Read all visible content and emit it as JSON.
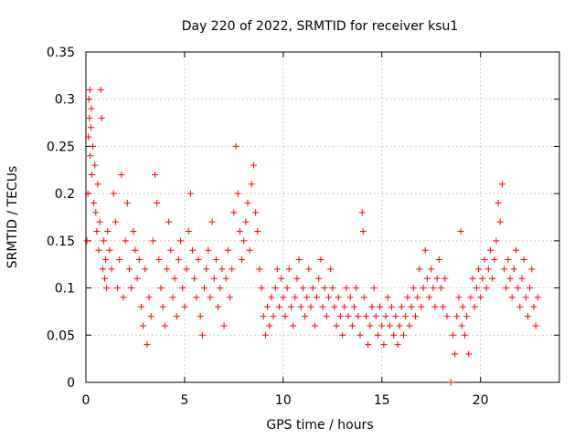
{
  "chart_data": {
    "type": "scatter",
    "title": "Day 220 of 2022, SRMTID for receiver ksu1",
    "xlabel": "GPS time / hours",
    "ylabel": "SRMTID / TECUs",
    "xlim": [
      0,
      24
    ],
    "ylim": [
      0,
      0.35
    ],
    "xticks": [
      0,
      5,
      10,
      15,
      20
    ],
    "xtick_labels": [
      "0",
      "5",
      "10",
      "15",
      "20"
    ],
    "yticks": [
      0,
      0.05,
      0.1,
      0.15,
      0.2,
      0.25,
      0.3,
      0.35
    ],
    "ytick_labels": [
      "0",
      "0.05",
      "0.1",
      "0.15",
      "0.2",
      "0.25",
      "0.3",
      "0.35"
    ],
    "grid": true,
    "marker": "plus",
    "color": "#ff0000",
    "series": [
      {
        "name": "SRMTID",
        "points": [
          [
            0.05,
            0.15
          ],
          [
            0.1,
            0.2
          ],
          [
            0.12,
            0.26
          ],
          [
            0.15,
            0.3
          ],
          [
            0.18,
            0.28
          ],
          [
            0.2,
            0.31
          ],
          [
            0.22,
            0.24
          ],
          [
            0.25,
            0.27
          ],
          [
            0.28,
            0.29
          ],
          [
            0.3,
            0.22
          ],
          [
            0.35,
            0.25
          ],
          [
            0.4,
            0.19
          ],
          [
            0.45,
            0.23
          ],
          [
            0.5,
            0.18
          ],
          [
            0.55,
            0.16
          ],
          [
            0.6,
            0.21
          ],
          [
            0.65,
            0.14
          ],
          [
            0.7,
            0.17
          ],
          [
            0.75,
            0.31
          ],
          [
            0.8,
            0.28
          ],
          [
            0.85,
            0.12
          ],
          [
            0.9,
            0.15
          ],
          [
            0.95,
            0.11
          ],
          [
            1.0,
            0.13
          ],
          [
            1.05,
            0.1
          ],
          [
            1.1,
            0.16
          ],
          [
            1.2,
            0.14
          ],
          [
            1.3,
            0.12
          ],
          [
            1.4,
            0.2
          ],
          [
            1.5,
            0.17
          ],
          [
            1.6,
            0.1
          ],
          [
            1.7,
            0.13
          ],
          [
            1.8,
            0.22
          ],
          [
            1.9,
            0.09
          ],
          [
            2.0,
            0.15
          ],
          [
            2.1,
            0.19
          ],
          [
            2.2,
            0.12
          ],
          [
            2.3,
            0.1
          ],
          [
            2.4,
            0.16
          ],
          [
            2.5,
            0.14
          ],
          [
            2.6,
            0.11
          ],
          [
            2.7,
            0.13
          ],
          [
            2.8,
            0.08
          ],
          [
            2.9,
            0.06
          ],
          [
            3.0,
            0.12
          ],
          [
            3.1,
            0.04
          ],
          [
            3.2,
            0.09
          ],
          [
            3.3,
            0.07
          ],
          [
            3.4,
            0.15
          ],
          [
            3.5,
            0.22
          ],
          [
            3.6,
            0.19
          ],
          [
            3.7,
            0.13
          ],
          [
            3.8,
            0.1
          ],
          [
            3.9,
            0.08
          ],
          [
            4.0,
            0.06
          ],
          [
            4.1,
            0.12
          ],
          [
            4.2,
            0.17
          ],
          [
            4.3,
            0.14
          ],
          [
            4.4,
            0.09
          ],
          [
            4.5,
            0.11
          ],
          [
            4.6,
            0.07
          ],
          [
            4.7,
            0.13
          ],
          [
            4.8,
            0.15
          ],
          [
            4.9,
            0.1
          ],
          [
            5.0,
            0.08
          ],
          [
            5.1,
            0.12
          ],
          [
            5.2,
            0.16
          ],
          [
            5.3,
            0.2
          ],
          [
            5.4,
            0.14
          ],
          [
            5.5,
            0.11
          ],
          [
            5.6,
            0.09
          ],
          [
            5.7,
            0.13
          ],
          [
            5.8,
            0.07
          ],
          [
            5.9,
            0.05
          ],
          [
            6.0,
            0.1
          ],
          [
            6.1,
            0.12
          ],
          [
            6.2,
            0.14
          ],
          [
            6.3,
            0.09
          ],
          [
            6.4,
            0.17
          ],
          [
            6.5,
            0.11
          ],
          [
            6.6,
            0.13
          ],
          [
            6.7,
            0.08
          ],
          [
            6.8,
            0.1
          ],
          [
            6.9,
            0.12
          ],
          [
            7.0,
            0.06
          ],
          [
            7.1,
            0.11
          ],
          [
            7.2,
            0.14
          ],
          [
            7.3,
            0.09
          ],
          [
            7.4,
            0.12
          ],
          [
            7.5,
            0.18
          ],
          [
            7.6,
            0.25
          ],
          [
            7.7,
            0.2
          ],
          [
            7.8,
            0.16
          ],
          [
            7.9,
            0.13
          ],
          [
            8.0,
            0.15
          ],
          [
            8.1,
            0.17
          ],
          [
            8.2,
            0.19
          ],
          [
            8.3,
            0.14
          ],
          [
            8.4,
            0.21
          ],
          [
            8.5,
            0.23
          ],
          [
            8.6,
            0.18
          ],
          [
            8.7,
            0.16
          ],
          [
            8.8,
            0.12
          ],
          [
            8.9,
            0.1
          ],
          [
            9.0,
            0.07
          ],
          [
            9.1,
            0.05
          ],
          [
            9.2,
            0.08
          ],
          [
            9.3,
            0.06
          ],
          [
            9.4,
            0.09
          ],
          [
            9.5,
            0.07
          ],
          [
            9.6,
            0.1
          ],
          [
            9.7,
            0.12
          ],
          [
            9.8,
            0.08
          ],
          [
            9.9,
            0.11
          ],
          [
            10.0,
            0.09
          ],
          [
            10.1,
            0.07
          ],
          [
            10.2,
            0.1
          ],
          [
            10.3,
            0.12
          ],
          [
            10.4,
            0.08
          ],
          [
            10.5,
            0.06
          ],
          [
            10.6,
            0.09
          ],
          [
            10.7,
            0.11
          ],
          [
            10.8,
            0.13
          ],
          [
            10.9,
            0.08
          ],
          [
            11.0,
            0.1
          ],
          [
            11.1,
            0.07
          ],
          [
            11.2,
            0.09
          ],
          [
            11.3,
            0.12
          ],
          [
            11.4,
            0.08
          ],
          [
            11.5,
            0.1
          ],
          [
            11.6,
            0.06
          ],
          [
            11.7,
            0.09
          ],
          [
            11.8,
            0.11
          ],
          [
            11.9,
            0.13
          ],
          [
            12.0,
            0.08
          ],
          [
            12.1,
            0.1
          ],
          [
            12.2,
            0.07
          ],
          [
            12.3,
            0.09
          ],
          [
            12.4,
            0.12
          ],
          [
            12.5,
            0.1
          ],
          [
            12.6,
            0.08
          ],
          [
            12.7,
            0.06
          ],
          [
            12.8,
            0.09
          ],
          [
            12.9,
            0.07
          ],
          [
            13.0,
            0.05
          ],
          [
            13.1,
            0.08
          ],
          [
            13.2,
            0.1
          ],
          [
            13.3,
            0.07
          ],
          [
            13.4,
            0.09
          ],
          [
            13.5,
            0.06
          ],
          [
            13.6,
            0.08
          ],
          [
            13.7,
            0.1
          ],
          [
            13.8,
            0.07
          ],
          [
            13.9,
            0.05
          ],
          [
            14.0,
            0.18
          ],
          [
            14.05,
            0.16
          ],
          [
            14.1,
            0.09
          ],
          [
            14.2,
            0.07
          ],
          [
            14.3,
            0.04
          ],
          [
            14.4,
            0.06
          ],
          [
            14.5,
            0.08
          ],
          [
            14.6,
            0.1
          ],
          [
            14.7,
            0.07
          ],
          [
            14.8,
            0.05
          ],
          [
            14.9,
            0.08
          ],
          [
            15.0,
            0.06
          ],
          [
            15.1,
            0.04
          ],
          [
            15.2,
            0.07
          ],
          [
            15.3,
            0.09
          ],
          [
            15.4,
            0.06
          ],
          [
            15.5,
            0.08
          ],
          [
            15.6,
            0.05
          ],
          [
            15.7,
            0.07
          ],
          [
            15.8,
            0.04
          ],
          [
            15.9,
            0.06
          ],
          [
            16.0,
            0.08
          ],
          [
            16.1,
            0.05
          ],
          [
            16.2,
            0.07
          ],
          [
            16.3,
            0.09
          ],
          [
            16.4,
            0.06
          ],
          [
            16.5,
            0.08
          ],
          [
            16.6,
            0.1
          ],
          [
            16.7,
            0.07
          ],
          [
            16.8,
            0.09
          ],
          [
            16.9,
            0.12
          ],
          [
            17.0,
            0.08
          ],
          [
            17.1,
            0.1
          ],
          [
            17.2,
            0.14
          ],
          [
            17.3,
            0.11
          ],
          [
            17.4,
            0.09
          ],
          [
            17.5,
            0.12
          ],
          [
            17.6,
            0.1
          ],
          [
            17.7,
            0.08
          ],
          [
            17.8,
            0.11
          ],
          [
            17.9,
            0.13
          ],
          [
            18.0,
            0.1
          ],
          [
            18.1,
            0.08
          ],
          [
            18.2,
            0.11
          ],
          [
            18.3,
            0.07
          ],
          [
            18.5,
            0.0
          ],
          [
            18.6,
            0.05
          ],
          [
            18.7,
            0.03
          ],
          [
            18.8,
            0.07
          ],
          [
            18.9,
            0.09
          ],
          [
            19.0,
            0.16
          ],
          [
            19.05,
            0.06
          ],
          [
            19.1,
            0.08
          ],
          [
            19.2,
            0.05
          ],
          [
            19.3,
            0.07
          ],
          [
            19.4,
            0.03
          ],
          [
            19.5,
            0.09
          ],
          [
            19.6,
            0.11
          ],
          [
            19.7,
            0.08
          ],
          [
            19.8,
            0.1
          ],
          [
            19.9,
            0.12
          ],
          [
            20.0,
            0.09
          ],
          [
            20.1,
            0.11
          ],
          [
            20.2,
            0.13
          ],
          [
            20.3,
            0.1
          ],
          [
            20.4,
            0.12
          ],
          [
            20.5,
            0.14
          ],
          [
            20.6,
            0.11
          ],
          [
            20.7,
            0.13
          ],
          [
            20.8,
            0.15
          ],
          [
            20.9,
            0.19
          ],
          [
            21.0,
            0.17
          ],
          [
            21.1,
            0.21
          ],
          [
            21.2,
            0.12
          ],
          [
            21.3,
            0.1
          ],
          [
            21.4,
            0.13
          ],
          [
            21.5,
            0.11
          ],
          [
            21.6,
            0.09
          ],
          [
            21.7,
            0.12
          ],
          [
            21.8,
            0.14
          ],
          [
            21.9,
            0.1
          ],
          [
            22.0,
            0.08
          ],
          [
            22.1,
            0.11
          ],
          [
            22.2,
            0.13
          ],
          [
            22.3,
            0.09
          ],
          [
            22.4,
            0.07
          ],
          [
            22.5,
            0.1
          ],
          [
            22.6,
            0.12
          ],
          [
            22.7,
            0.08
          ],
          [
            22.8,
            0.06
          ],
          [
            22.9,
            0.09
          ]
        ]
      }
    ]
  }
}
